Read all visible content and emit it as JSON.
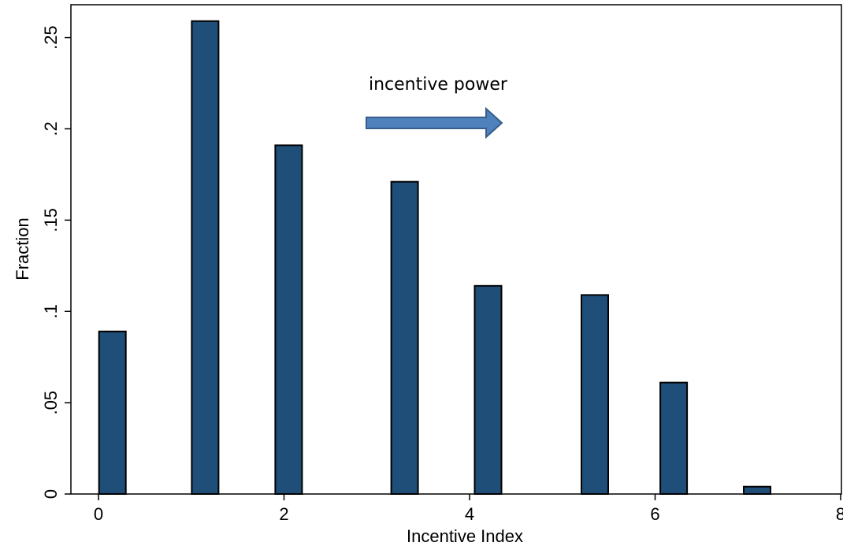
{
  "chart_data": {
    "type": "bar",
    "title": "",
    "xlabel": "Incentive Index",
    "ylabel": "Fraction",
    "xlim": [
      -0.4,
      8
    ],
    "ylim": [
      0,
      0.268
    ],
    "grid": false,
    "legend": false,
    "bar_color": "#1f4e79",
    "bar_edge_color": "#000000",
    "x": [
      0.15,
      1.15,
      2.05,
      3.3,
      4.2,
      5.35,
      6.2,
      7.1
    ],
    "values": [
      0.089,
      0.259,
      0.191,
      0.171,
      0.114,
      0.109,
      0.061,
      0.004
    ],
    "x_ticks": [
      0,
      2,
      4,
      6,
      8
    ],
    "x_tick_labels": [
      "0",
      "2",
      "4",
      "6",
      "8"
    ],
    "y_ticks": [
      0,
      0.05,
      0.1,
      0.15,
      0.2,
      0.25
    ],
    "y_tick_labels": [
      "0",
      ".05",
      ".1",
      ".15",
      ".2",
      ".25"
    ],
    "annotation": {
      "text": "incentive power",
      "arrow_direction": "right",
      "arrow_color": "#4f81bd",
      "arrow_edge_color": "#385d8a"
    }
  }
}
